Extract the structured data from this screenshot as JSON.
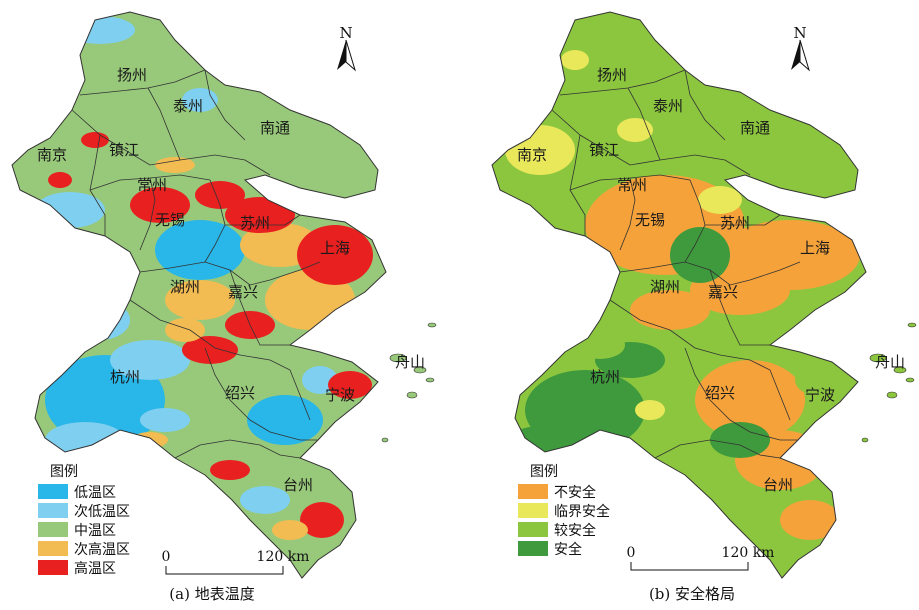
{
  "panels": [
    {
      "id": "a",
      "caption": "(a) 地表温度",
      "legend_title": "图例",
      "legend": [
        {
          "label": "低温区",
          "color": "#29b6e8"
        },
        {
          "label": "次低温区",
          "color": "#7fcff0"
        },
        {
          "label": "中温区",
          "color": "#98c97a"
        },
        {
          "label": "次高温区",
          "color": "#f2bc52"
        },
        {
          "label": "高温区",
          "color": "#e82020"
        }
      ],
      "base_color": "#98c97a",
      "cities": [
        "扬州",
        "泰州",
        "南通",
        "南京",
        "镇江",
        "常州",
        "无锡",
        "苏州",
        "上海",
        "湖州",
        "嘉兴",
        "杭州",
        "绍兴",
        "宁波",
        "舟山",
        "台州"
      ],
      "scale": {
        "zero": "0",
        "end": "120 km"
      },
      "north": "N"
    },
    {
      "id": "b",
      "caption": "(b) 安全格局",
      "legend_title": "图例",
      "legend": [
        {
          "label": "不安全",
          "color": "#f5a23a"
        },
        {
          "label": "临界安全",
          "color": "#e9e85a"
        },
        {
          "label": "较安全",
          "color": "#8cc63f"
        },
        {
          "label": "安全",
          "color": "#3e9a3c"
        }
      ],
      "base_color": "#8cc63f",
      "cities": [
        "扬州",
        "泰州",
        "南通",
        "南京",
        "镇江",
        "常州",
        "无锡",
        "苏州",
        "上海",
        "湖州",
        "嘉兴",
        "杭州",
        "绍兴",
        "宁波",
        "舟山",
        "台州"
      ],
      "scale": {
        "zero": "0",
        "end": "120 km"
      },
      "north": "N"
    }
  ]
}
